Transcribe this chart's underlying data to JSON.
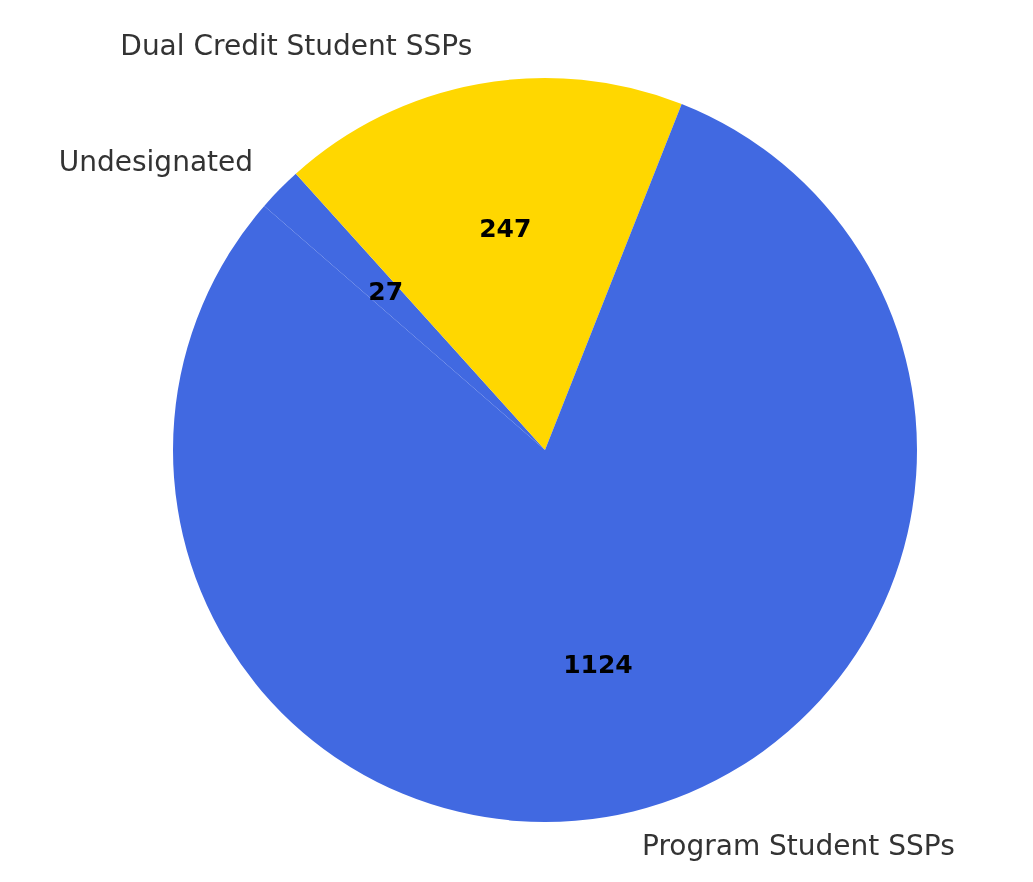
{
  "chart_data": {
    "type": "pie",
    "categories": [
      "Undesignated",
      "Dual Credit Student SSPs",
      "Program Student SSPs"
    ],
    "values": [
      27,
      247,
      1124
    ],
    "colors": [
      "#4169e1",
      "#ffd700",
      "#4169e1"
    ],
    "data_labels": true,
    "legend": false
  }
}
